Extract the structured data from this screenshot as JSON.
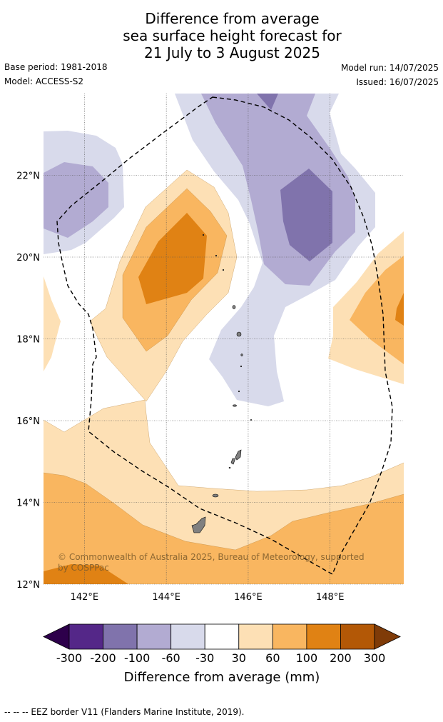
{
  "title": {
    "line1": "Difference from average",
    "line2": "sea surface height forecast for",
    "line3": "21 July to 3 August 2025"
  },
  "meta": {
    "base_period": "Base period: 1981-2018",
    "model": "Model: ACCESS-S2",
    "model_run": "Model run: 14/07/2025",
    "issued": "Issued: 16/07/2025"
  },
  "map": {
    "lon_range": [
      141,
      149.8
    ],
    "lat_range": [
      12,
      24
    ],
    "lat_ticks": [
      {
        "value": 22,
        "label": "22°N"
      },
      {
        "value": 20,
        "label": "20°N"
      },
      {
        "value": 18,
        "label": "18°N"
      },
      {
        "value": 16,
        "label": "16°N"
      },
      {
        "value": 14,
        "label": "14°N"
      },
      {
        "value": 12,
        "label": "12°N"
      }
    ],
    "lon_ticks": [
      {
        "value": 142,
        "label": "142°E"
      },
      {
        "value": 144,
        "label": "144°E"
      },
      {
        "value": 146,
        "label": "146°E"
      },
      {
        "value": 148,
        "label": "148°E"
      }
    ],
    "copyright": "© Commonwealth of Australia 2025, Bureau of Meteorology, supported by COSPPac",
    "colors": {
      "pos_30_60": "#fde0b5",
      "pos_60_100": "#f9b660",
      "pos_100_200": "#e08214",
      "neg_30_60": "#d8daeb",
      "neg_60_100": "#b2abd2",
      "neg_100_200": "#8073ac",
      "land": "#808080",
      "eez_border": "#000000"
    }
  },
  "colorbar": {
    "ticks": [
      "-300",
      "-200",
      "-100",
      "-60",
      "-30",
      "30",
      "60",
      "100",
      "200",
      "300"
    ],
    "colors": [
      "#2d004b",
      "#542788",
      "#8073ac",
      "#b2abd2",
      "#d8daeb",
      "#ffffff",
      "#fde0b5",
      "#f9b660",
      "#e08214",
      "#b35806",
      "#7f3b08"
    ],
    "label": "Difference from average (mm)"
  },
  "footer": "--  --  -- EEZ border V11 (Flanders Marine Institute, 2019)."
}
